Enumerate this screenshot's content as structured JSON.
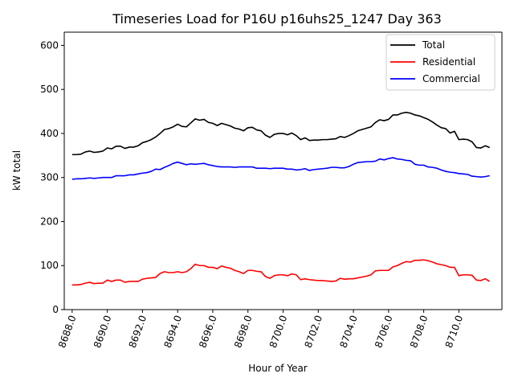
{
  "chart_data": {
    "type": "line",
    "title": "Timeseries Load for P16U p16uhs25_1247  Day 363",
    "xlabel": "Hour of Year",
    "ylabel": "kW total",
    "xlim": [
      8687.55,
      8712.45
    ],
    "ylim": [
      0,
      630
    ],
    "x_ticks": [
      8688,
      8690,
      8692,
      8694,
      8696,
      8698,
      8700,
      8702,
      8704,
      8706,
      8708,
      8710
    ],
    "x_tick_labels": [
      "8688.0",
      "8690.0",
      "8692.0",
      "8694.0",
      "8696.0",
      "8698.0",
      "8700.0",
      "8702.0",
      "8704.0",
      "8706.0",
      "8708.0",
      "8710.0"
    ],
    "y_ticks": [
      0,
      100,
      200,
      300,
      400,
      500,
      600
    ],
    "y_tick_labels": [
      "0",
      "100",
      "200",
      "300",
      "400",
      "500",
      "600"
    ],
    "legend_position": "top-right",
    "x_start": 8688,
    "x_step": 0.25,
    "series": [
      {
        "name": "Total",
        "color": "#000000",
        "values": [
          352,
          352,
          353,
          358,
          360,
          357,
          358,
          360,
          367,
          365,
          371,
          371,
          366,
          369,
          369,
          372,
          379,
          382,
          386,
          392,
          400,
          409,
          411,
          415,
          421,
          416,
          415,
          424,
          433,
          430,
          432,
          425,
          423,
          418,
          423,
          420,
          417,
          412,
          410,
          406,
          413,
          414,
          408,
          406,
          396,
          391,
          398,
          400,
          400,
          397,
          401,
          395,
          386,
          390,
          384,
          385,
          385,
          386,
          386,
          387,
          388,
          393,
          391,
          395,
          400,
          406,
          409,
          412,
          415,
          425,
          431,
          429,
          432,
          442,
          442,
          446,
          448,
          446,
          442,
          440,
          436,
          432,
          426,
          419,
          413,
          411,
          401,
          405,
          386,
          387,
          386,
          381,
          368,
          367,
          372,
          368
        ]
      },
      {
        "name": "Residential",
        "color": "#ff0000",
        "values": [
          56,
          56,
          57,
          60,
          62,
          59,
          60,
          60,
          67,
          64,
          67,
          67,
          62,
          64,
          64,
          64,
          69,
          71,
          72,
          73,
          82,
          86,
          84,
          84,
          86,
          84,
          86,
          93,
          103,
          100,
          100,
          96,
          96,
          93,
          99,
          96,
          94,
          89,
          86,
          82,
          89,
          89,
          87,
          86,
          75,
          71,
          77,
          79,
          79,
          77,
          81,
          79,
          68,
          70,
          68,
          67,
          66,
          66,
          65,
          64,
          65,
          71,
          69,
          70,
          70,
          72,
          74,
          76,
          79,
          88,
          89,
          89,
          89,
          97,
          100,
          105,
          109,
          108,
          112,
          112,
          113,
          111,
          108,
          104,
          102,
          100,
          96,
          96,
          77,
          79,
          79,
          78,
          67,
          66,
          70,
          64
        ]
      },
      {
        "name": "Commercial",
        "color": "#0000ff",
        "values": [
          296,
          297,
          297,
          298,
          299,
          298,
          299,
          300,
          300,
          300,
          304,
          304,
          304,
          306,
          306,
          308,
          310,
          311,
          314,
          319,
          318,
          323,
          327,
          332,
          335,
          332,
          329,
          331,
          330,
          331,
          332,
          329,
          327,
          325,
          324,
          324,
          324,
          323,
          324,
          324,
          324,
          324,
          321,
          321,
          321,
          320,
          321,
          321,
          321,
          319,
          319,
          317,
          318,
          320,
          316,
          318,
          319,
          320,
          321,
          323,
          323,
          322,
          322,
          325,
          330,
          334,
          335,
          336,
          336,
          337,
          342,
          340,
          343,
          345,
          342,
          341,
          339,
          338,
          330,
          328,
          328,
          324,
          323,
          321,
          317,
          314,
          312,
          311,
          309,
          308,
          307,
          303,
          302,
          301,
          302,
          304
        ]
      }
    ]
  }
}
